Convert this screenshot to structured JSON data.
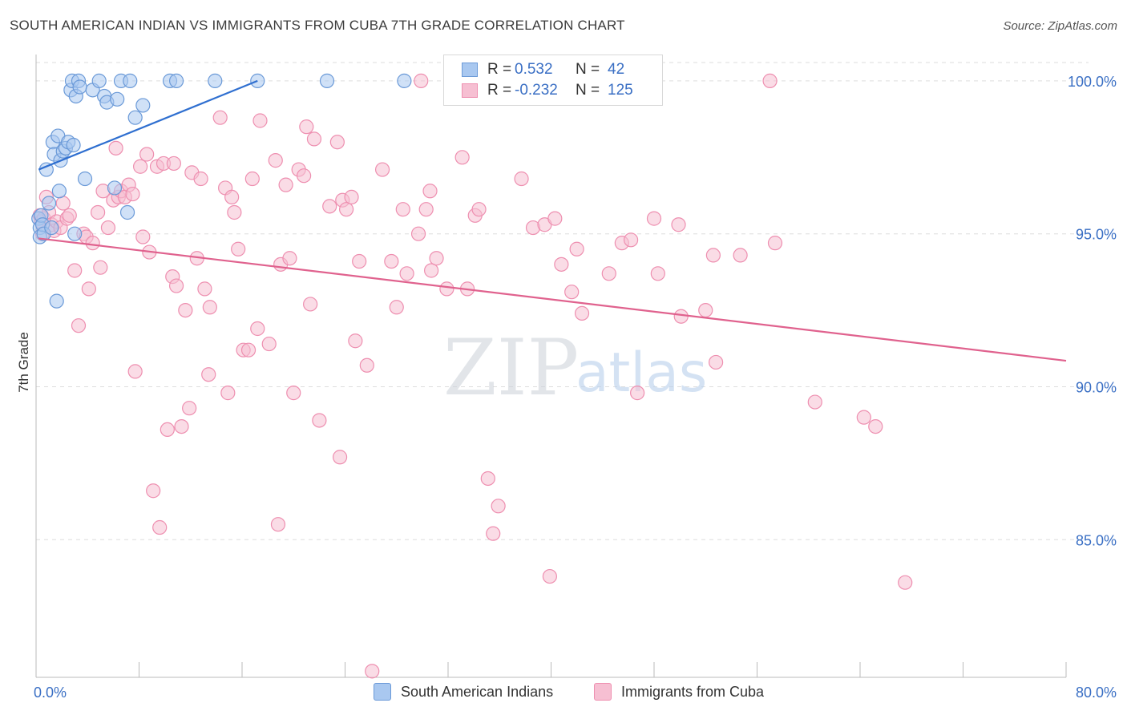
{
  "title": "SOUTH AMERICAN INDIAN VS IMMIGRANTS FROM CUBA 7TH GRADE CORRELATION CHART",
  "source": "Source: ZipAtlas.com",
  "watermark": {
    "zip": "ZIP",
    "atlas": "atlas"
  },
  "legend": {
    "rows": [
      {
        "r_label": "R =",
        "r_value": "0.532",
        "n_label": "N =",
        "n_value": "42"
      },
      {
        "r_label": "R =",
        "r_value": "-0.232",
        "n_label": "N =",
        "n_value": "125"
      }
    ]
  },
  "bottom_legend": [
    "South American Indians",
    "Immigrants from Cuba"
  ],
  "colors": {
    "blue_fill": "#a9c8f0",
    "blue_stroke": "#6b9ad8",
    "blue_line": "#2f6fd0",
    "pink_fill": "#f6bfd2",
    "pink_stroke": "#ee8fb0",
    "pink_line": "#e0628e",
    "axis_label": "#3a6fc4",
    "grid": "#dddddd"
  },
  "chart_data": {
    "type": "scatter",
    "title": "SOUTH AMERICAN INDIAN VS IMMIGRANTS FROM CUBA 7TH GRADE CORRELATION CHART",
    "xlabel": "",
    "ylabel": "7th Grade",
    "xlim": [
      0,
      80
    ],
    "ylim": [
      80.5,
      100.6
    ],
    "x_ticks": [
      "0.0%",
      "80.0%"
    ],
    "y_ticks": [
      {
        "value": 100,
        "label": "100.0%"
      },
      {
        "value": 95,
        "label": "95.0%"
      },
      {
        "value": 90,
        "label": "90.0%"
      },
      {
        "value": 85,
        "label": "85.0%"
      }
    ],
    "grid": true,
    "legend_position": "top-center",
    "series": [
      {
        "name": "South American Indians",
        "r": 0.532,
        "n": 42,
        "trend": {
          "x": [
            0.2,
            17.2
          ],
          "y": [
            97.1,
            100.0
          ]
        },
        "points": [
          [
            0.2,
            95.5
          ],
          [
            0.3,
            95.2
          ],
          [
            0.3,
            94.9
          ],
          [
            0.4,
            95.6
          ],
          [
            0.5,
            95.3
          ],
          [
            0.6,
            95.0
          ],
          [
            0.8,
            97.1
          ],
          [
            1.0,
            96.0
          ],
          [
            1.2,
            95.2
          ],
          [
            1.3,
            98.0
          ],
          [
            1.4,
            97.6
          ],
          [
            1.6,
            92.8
          ],
          [
            1.7,
            98.2
          ],
          [
            1.8,
            96.4
          ],
          [
            1.9,
            97.4
          ],
          [
            2.1,
            97.7
          ],
          [
            2.3,
            97.8
          ],
          [
            2.5,
            98.0
          ],
          [
            2.7,
            99.7
          ],
          [
            2.8,
            100.0
          ],
          [
            2.9,
            97.9
          ],
          [
            3.0,
            95.0
          ],
          [
            3.1,
            99.5
          ],
          [
            3.3,
            100.0
          ],
          [
            3.4,
            99.8
          ],
          [
            3.8,
            96.8
          ],
          [
            4.4,
            99.7
          ],
          [
            4.9,
            100.0
          ],
          [
            5.3,
            99.5
          ],
          [
            5.5,
            99.3
          ],
          [
            6.1,
            96.5
          ],
          [
            6.3,
            99.4
          ],
          [
            6.6,
            100.0
          ],
          [
            7.1,
            95.7
          ],
          [
            7.3,
            100.0
          ],
          [
            7.7,
            98.8
          ],
          [
            8.3,
            99.2
          ],
          [
            10.4,
            100.0
          ],
          [
            10.9,
            100.0
          ],
          [
            13.9,
            100.0
          ],
          [
            17.2,
            100.0
          ],
          [
            22.6,
            100.0
          ],
          [
            28.6,
            100.0
          ]
        ]
      },
      {
        "name": "Immigrants from Cuba",
        "r": -0.232,
        "n": 125,
        "trend": {
          "x": [
            0.2,
            80.0
          ],
          "y": [
            94.85,
            90.85
          ]
        },
        "points": [
          [
            0.3,
            95.6
          ],
          [
            0.4,
            95.4
          ],
          [
            0.5,
            95.0
          ],
          [
            0.6,
            95.5
          ],
          [
            0.8,
            96.2
          ],
          [
            1.0,
            95.7
          ],
          [
            1.2,
            95.3
          ],
          [
            1.4,
            95.1
          ],
          [
            1.6,
            95.4
          ],
          [
            1.9,
            95.2
          ],
          [
            2.1,
            96.0
          ],
          [
            2.4,
            95.5
          ],
          [
            2.6,
            95.6
          ],
          [
            3.0,
            93.8
          ],
          [
            3.3,
            92.0
          ],
          [
            3.7,
            95.0
          ],
          [
            3.9,
            94.9
          ],
          [
            4.1,
            93.2
          ],
          [
            4.4,
            94.7
          ],
          [
            4.8,
            95.7
          ],
          [
            5.0,
            93.9
          ],
          [
            5.2,
            96.4
          ],
          [
            5.6,
            95.2
          ],
          [
            6.0,
            96.1
          ],
          [
            6.2,
            97.8
          ],
          [
            6.4,
            96.2
          ],
          [
            6.6,
            96.4
          ],
          [
            6.9,
            96.2
          ],
          [
            7.2,
            96.6
          ],
          [
            7.5,
            96.3
          ],
          [
            7.7,
            90.5
          ],
          [
            8.1,
            97.2
          ],
          [
            8.3,
            94.9
          ],
          [
            8.6,
            97.6
          ],
          [
            8.8,
            94.4
          ],
          [
            9.1,
            86.6
          ],
          [
            9.4,
            97.2
          ],
          [
            9.6,
            85.4
          ],
          [
            9.9,
            97.3
          ],
          [
            10.2,
            88.6
          ],
          [
            10.6,
            93.6
          ],
          [
            10.7,
            97.3
          ],
          [
            10.9,
            93.3
          ],
          [
            11.3,
            88.7
          ],
          [
            11.6,
            92.5
          ],
          [
            11.9,
            89.3
          ],
          [
            12.1,
            97.0
          ],
          [
            12.5,
            94.2
          ],
          [
            12.8,
            96.8
          ],
          [
            13.1,
            93.2
          ],
          [
            13.4,
            90.4
          ],
          [
            13.5,
            92.6
          ],
          [
            14.3,
            98.8
          ],
          [
            14.7,
            96.5
          ],
          [
            14.9,
            89.8
          ],
          [
            15.2,
            96.2
          ],
          [
            15.4,
            95.7
          ],
          [
            15.7,
            94.5
          ],
          [
            16.1,
            91.2
          ],
          [
            16.5,
            91.2
          ],
          [
            16.8,
            96.8
          ],
          [
            17.2,
            91.9
          ],
          [
            17.4,
            98.7
          ],
          [
            18.1,
            91.4
          ],
          [
            18.6,
            97.4
          ],
          [
            18.8,
            85.5
          ],
          [
            19.0,
            94.0
          ],
          [
            19.4,
            96.6
          ],
          [
            19.7,
            94.2
          ],
          [
            20.0,
            89.8
          ],
          [
            20.4,
            97.1
          ],
          [
            20.8,
            96.9
          ],
          [
            21.0,
            98.5
          ],
          [
            21.3,
            92.7
          ],
          [
            21.6,
            98.1
          ],
          [
            22.0,
            88.9
          ],
          [
            22.8,
            95.9
          ],
          [
            23.4,
            98.0
          ],
          [
            23.6,
            87.7
          ],
          [
            23.8,
            96.1
          ],
          [
            24.1,
            95.8
          ],
          [
            24.5,
            96.2
          ],
          [
            24.8,
            91.5
          ],
          [
            25.1,
            94.1
          ],
          [
            25.7,
            90.7
          ],
          [
            26.1,
            80.7
          ],
          [
            26.9,
            97.1
          ],
          [
            27.6,
            94.1
          ],
          [
            28.0,
            92.6
          ],
          [
            28.5,
            95.8
          ],
          [
            28.8,
            93.7
          ],
          [
            29.7,
            95.0
          ],
          [
            29.9,
            100.0
          ],
          [
            30.3,
            95.8
          ],
          [
            30.6,
            96.4
          ],
          [
            30.7,
            93.8
          ],
          [
            31.1,
            94.2
          ],
          [
            31.9,
            93.2
          ],
          [
            33.1,
            97.5
          ],
          [
            33.5,
            93.2
          ],
          [
            34.1,
            95.6
          ],
          [
            34.4,
            95.8
          ],
          [
            35.1,
            87.0
          ],
          [
            35.5,
            85.2
          ],
          [
            35.9,
            86.1
          ],
          [
            37.7,
            96.8
          ],
          [
            38.6,
            95.2
          ],
          [
            39.5,
            95.3
          ],
          [
            39.9,
            83.8
          ],
          [
            40.3,
            95.5
          ],
          [
            40.8,
            94.0
          ],
          [
            41.6,
            93.1
          ],
          [
            42.0,
            94.5
          ],
          [
            42.4,
            92.4
          ],
          [
            44.5,
            93.7
          ],
          [
            45.5,
            94.7
          ],
          [
            46.2,
            94.8
          ],
          [
            46.7,
            89.8
          ],
          [
            48.0,
            95.5
          ],
          [
            48.3,
            93.7
          ],
          [
            49.9,
            95.3
          ],
          [
            50.1,
            92.3
          ],
          [
            52.0,
            92.5
          ],
          [
            52.6,
            94.3
          ],
          [
            52.8,
            90.8
          ],
          [
            54.7,
            94.3
          ],
          [
            57.0,
            100.0
          ],
          [
            57.4,
            94.7
          ],
          [
            60.5,
            89.5
          ],
          [
            64.3,
            89.0
          ],
          [
            65.2,
            88.7
          ],
          [
            67.5,
            83.6
          ]
        ]
      }
    ]
  }
}
